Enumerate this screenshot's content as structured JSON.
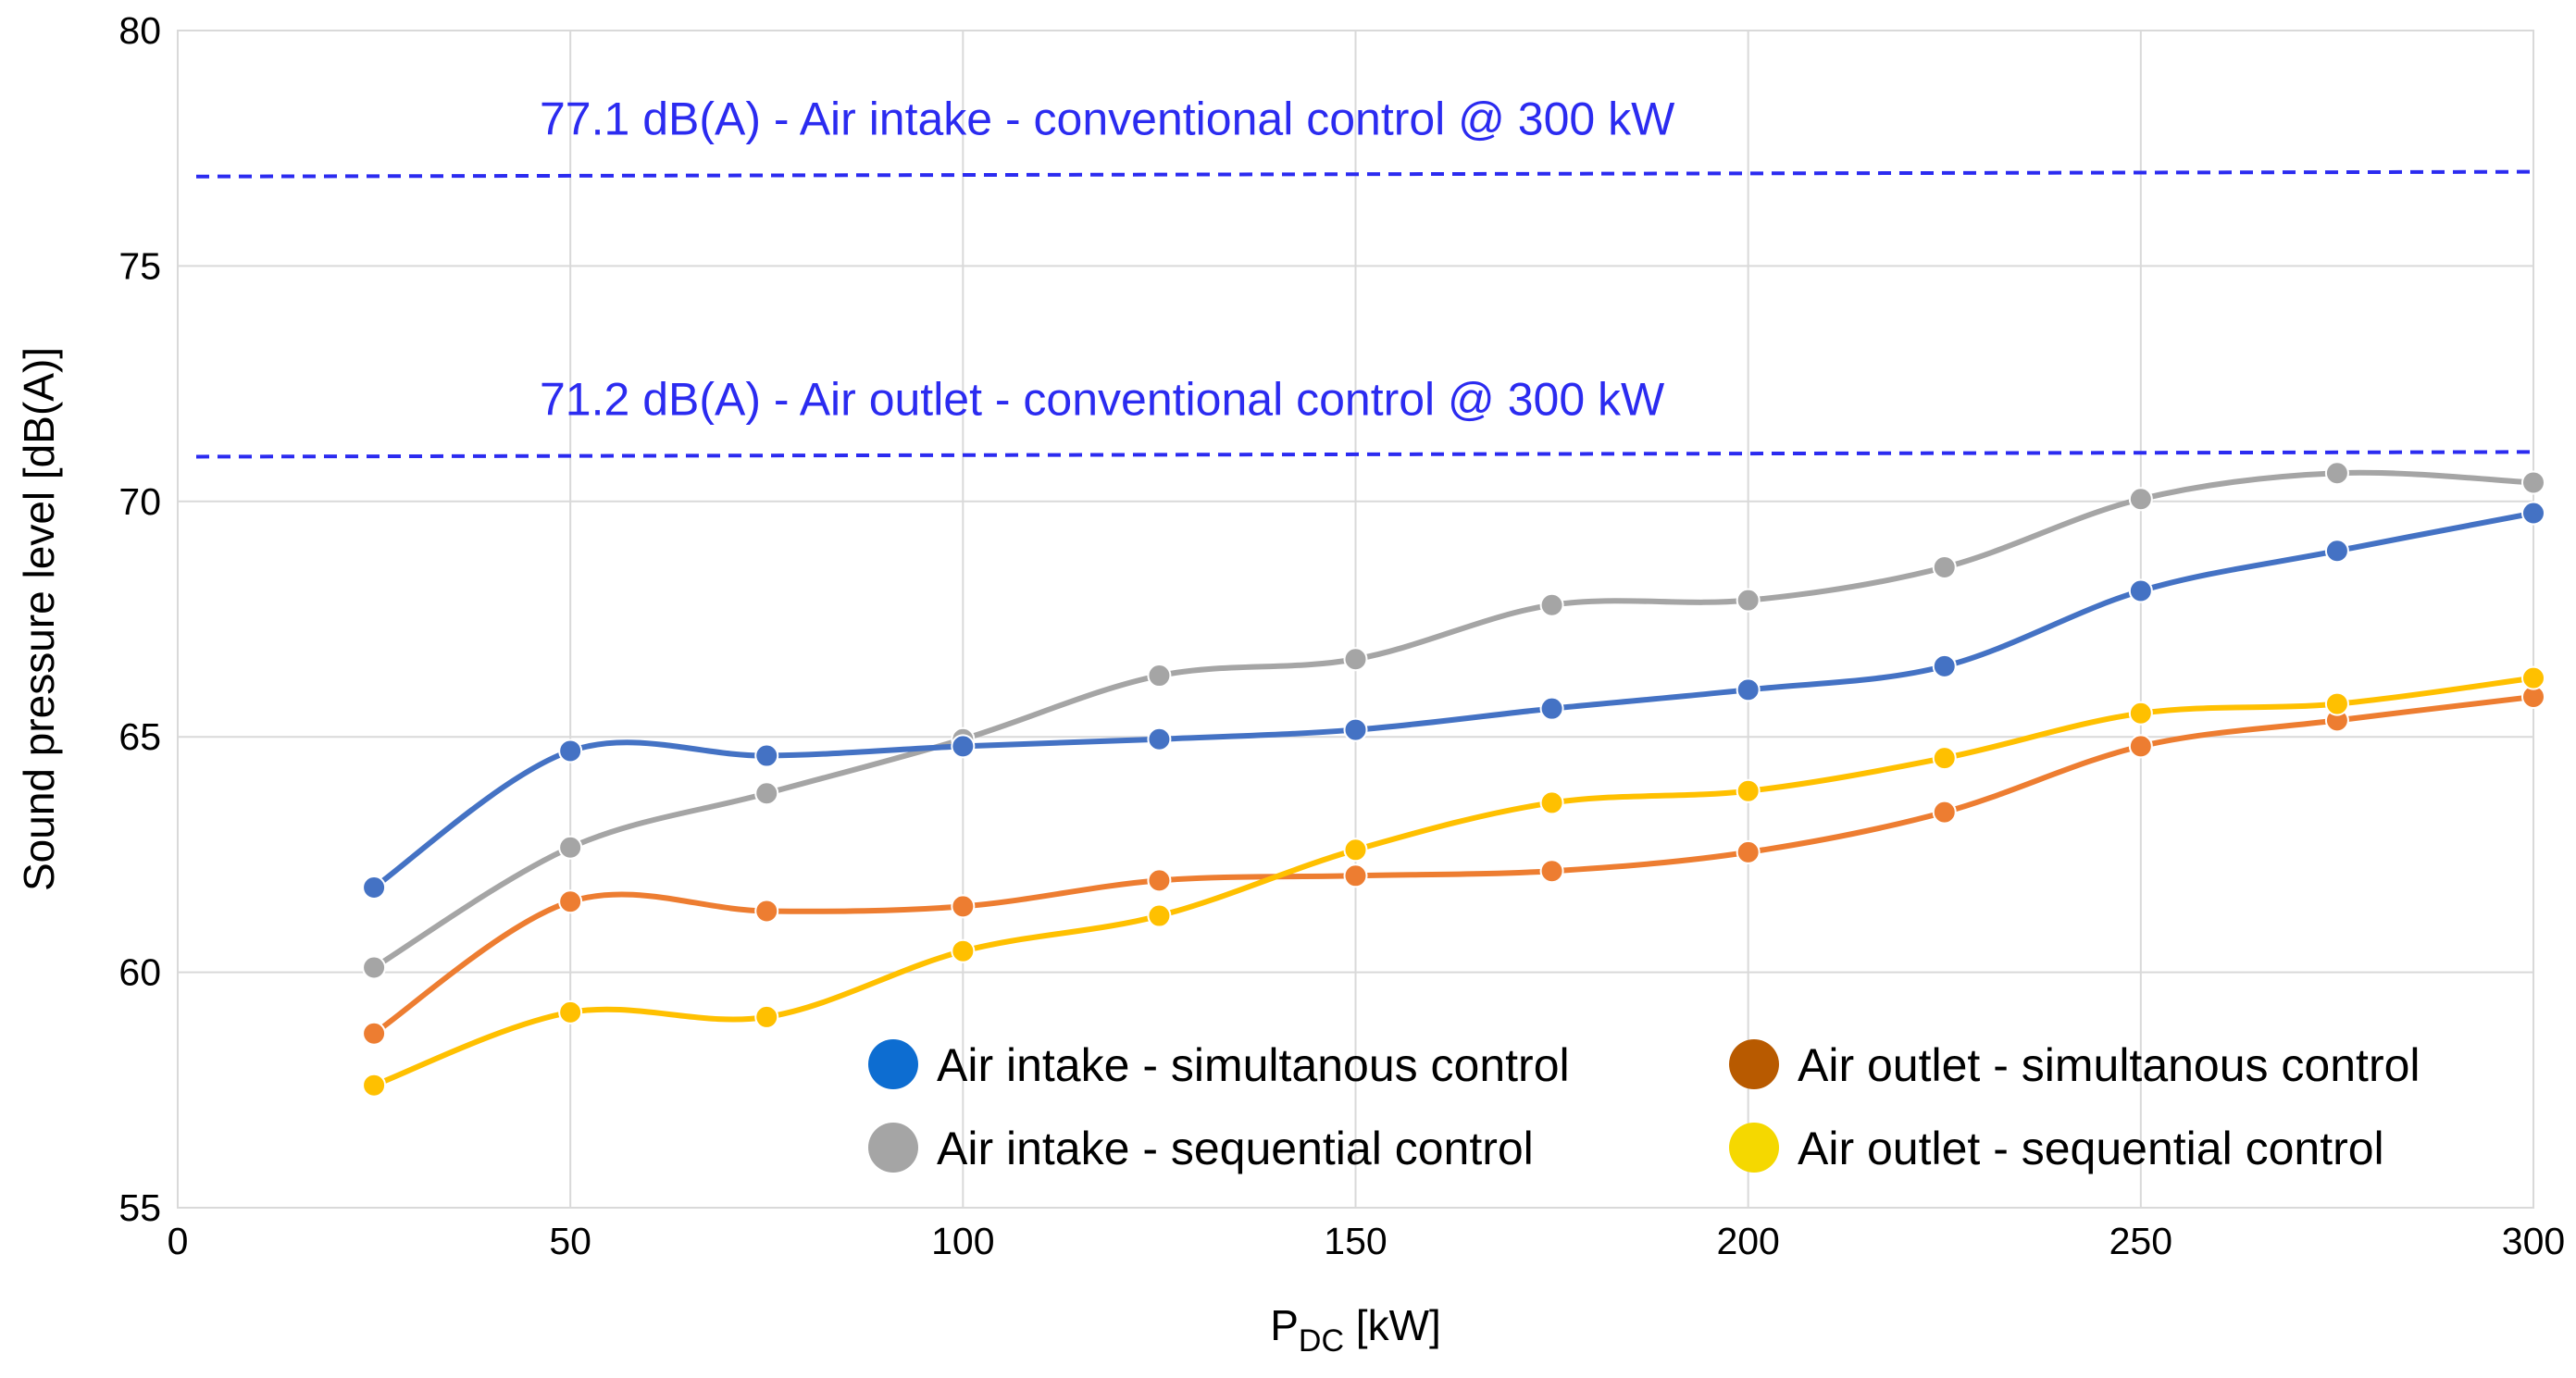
{
  "chart_data": {
    "type": "line",
    "title": "",
    "xlabel": "P",
    "xlabel_subscript": "DC",
    "xlabel_unit": " [kW]",
    "ylabel": "Sound pressure level [dB(A)]",
    "xlim": [
      0,
      300
    ],
    "ylim": [
      55,
      80
    ],
    "xticks": [
      0,
      50,
      100,
      150,
      200,
      250,
      300
    ],
    "yticks": [
      55,
      60,
      65,
      70,
      75,
      80
    ],
    "grid": true,
    "legend_position": "bottom-right",
    "x": [
      25,
      50,
      75,
      100,
      125,
      150,
      175,
      200,
      225,
      250,
      275,
      300
    ],
    "series": [
      {
        "name": "Air intake - simultanous control",
        "color": "#4472c4",
        "legend_color": "#0d6dd1",
        "values": [
          61.8,
          64.7,
          64.6,
          64.8,
          64.95,
          65.15,
          65.6,
          66.0,
          66.5,
          68.1,
          68.95,
          69.75
        ]
      },
      {
        "name": "Air outlet - simultanous control",
        "color": "#ed7d31",
        "legend_color": "#b85a00",
        "values": [
          58.7,
          61.5,
          61.3,
          61.4,
          61.95,
          62.05,
          62.15,
          62.55,
          63.4,
          64.8,
          65.35,
          65.85
        ]
      },
      {
        "name": "Air intake - sequential control",
        "color": "#a5a5a5",
        "legend_color": "#a5a5a5",
        "values": [
          60.1,
          62.65,
          63.8,
          64.95,
          66.3,
          66.65,
          67.8,
          67.9,
          68.6,
          70.05,
          70.6,
          70.4
        ]
      },
      {
        "name": "Air outlet - sequential control",
        "color": "#ffc000",
        "legend_color": "#f5d800",
        "values": [
          57.6,
          59.15,
          59.05,
          60.45,
          61.2,
          62.6,
          63.6,
          63.85,
          64.55,
          65.5,
          65.7,
          66.25
        ]
      }
    ],
    "reference_lines": [
      {
        "label": "77.1 dB(A) - Air intake - conventional control @ 300 kW",
        "value": 77.1,
        "y_start": 76.9,
        "y_end": 77.0,
        "color": "#2b2bf0"
      },
      {
        "label": "71.2 dB(A) - Air outlet - conventional control @ 300 kW",
        "value": 71.2,
        "y_start": 70.95,
        "y_end": 71.05,
        "color": "#2b2bf0"
      }
    ]
  }
}
